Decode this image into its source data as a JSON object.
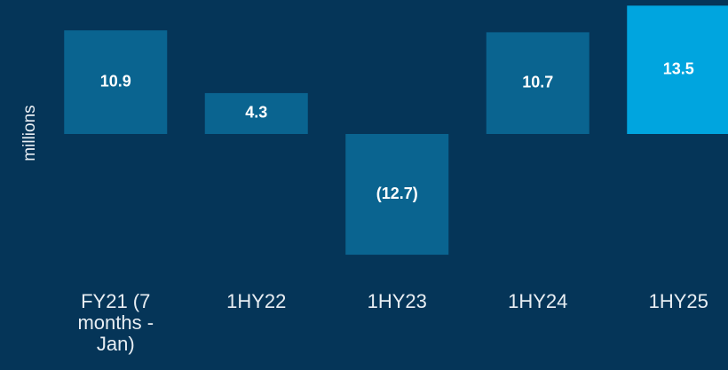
{
  "chart_data": {
    "type": "bar",
    "y_label": "millions",
    "categories": [
      "FY21 (7 months - Jan)",
      "1HY22",
      "1HY23",
      "1HY24",
      "1HY25"
    ],
    "values": [
      10.9,
      4.3,
      -12.7,
      10.7,
      13.5
    ],
    "value_labels": [
      "10.9",
      "4.3",
      "(12.7)",
      "10.7",
      "13.5"
    ],
    "colors": [
      "#0a6490",
      "#0a6490",
      "#0a6490",
      "#0a6490",
      "#00a5df"
    ],
    "ylim": [
      -14,
      14
    ],
    "grid": false
  }
}
